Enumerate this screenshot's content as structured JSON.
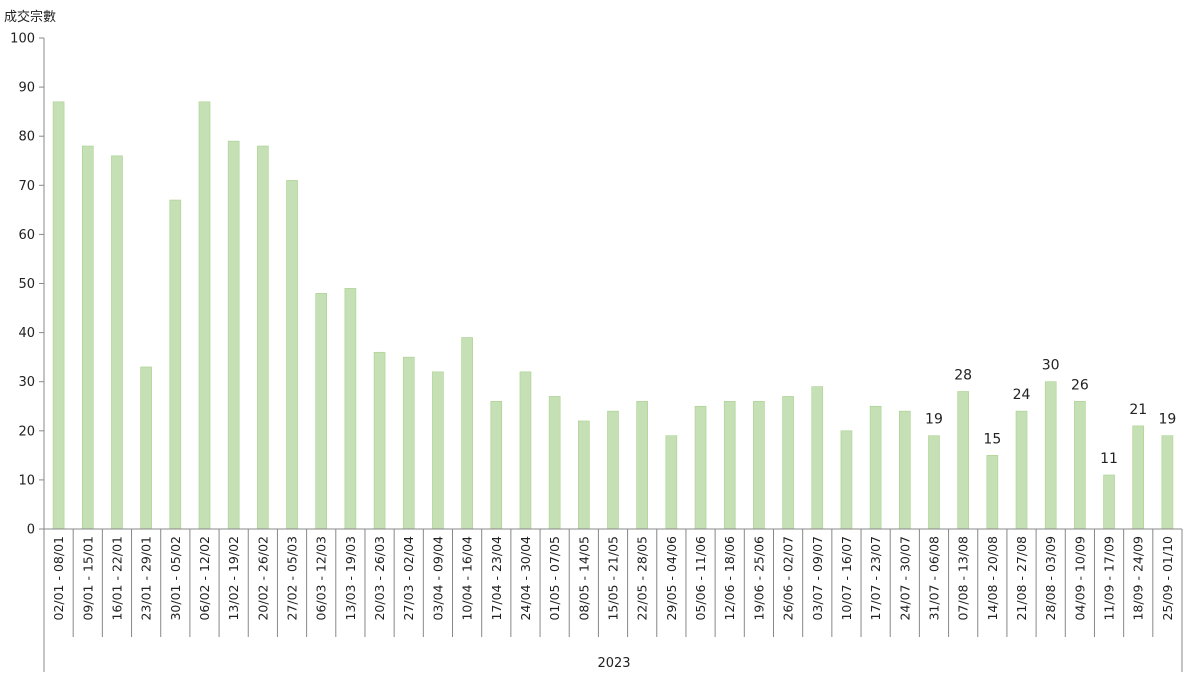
{
  "chart_data": {
    "type": "bar",
    "ylabel": "成交宗數",
    "group_label": "2023",
    "ylim": [
      0,
      100
    ],
    "yticks": [
      0,
      10,
      20,
      30,
      40,
      50,
      60,
      70,
      80,
      90,
      100
    ],
    "grid": false,
    "bar_color": "#c5e0b4",
    "bar_edge_color": "#a9d08e",
    "categories": [
      "02/01 - 08/01",
      "09/01 - 15/01",
      "16/01 - 22/01",
      "23/01 - 29/01",
      "30/01 - 05/02",
      "06/02 - 12/02",
      "13/02 - 19/02",
      "20/02 - 26/02",
      "27/02 - 05/03",
      "06/03 - 12/03",
      "13/03 - 19/03",
      "20/03 - 26/03",
      "27/03 - 02/04",
      "03/04 - 09/04",
      "10/04 - 16/04",
      "17/04 - 23/04",
      "24/04 - 30/04",
      "01/05 - 07/05",
      "08/05 - 14/05",
      "15/05 - 21/05",
      "22/05 - 28/05",
      "29/05 - 04/06",
      "05/06 - 11/06",
      "12/06 - 18/06",
      "19/06 - 25/06",
      "26/06 - 02/07",
      "03/07 - 09/07",
      "10/07 - 16/07",
      "17/07 - 23/07",
      "24/07 - 30/07",
      "31/07 - 06/08",
      "07/08 - 13/08",
      "14/08 - 20/08",
      "21/08 - 27/08",
      "28/08 - 03/09",
      "04/09 - 10/09",
      "11/09 - 17/09",
      "18/09 - 24/09",
      "25/09 - 01/10"
    ],
    "values": [
      87,
      78,
      76,
      33,
      67,
      87,
      79,
      78,
      71,
      48,
      49,
      36,
      35,
      32,
      39,
      26,
      32,
      27,
      22,
      24,
      26,
      19,
      25,
      26,
      26,
      27,
      29,
      20,
      25,
      24,
      19,
      28,
      15,
      24,
      30,
      26,
      11,
      21,
      19
    ],
    "labeled_indices": [
      30,
      31,
      32,
      33,
      34,
      35,
      36,
      37,
      38
    ]
  }
}
